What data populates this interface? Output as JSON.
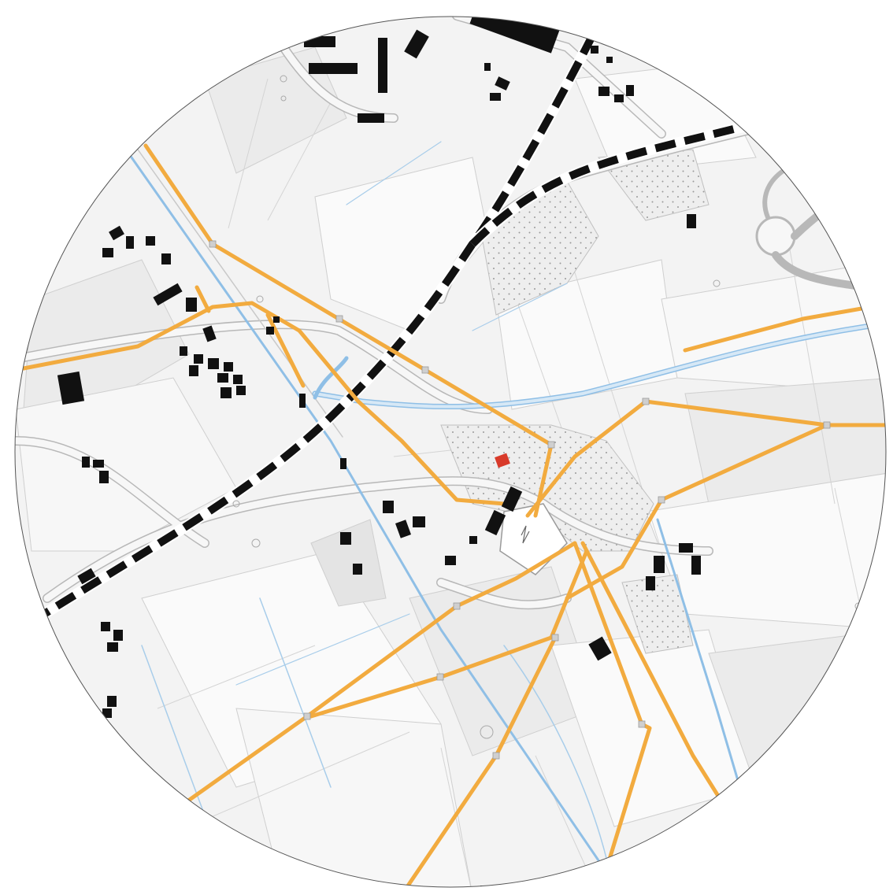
{
  "map": {
    "style": "circular cadastral site plan",
    "colors": {
      "background": "#ffffff",
      "land": "#f3f3f3",
      "parcel_light": "#fafafa",
      "parcel_grey": "#ebebeb",
      "parcel_stroke": "#cfcfcf",
      "road_casing": "#b8b8b8",
      "road_fill": "#f7f7f7",
      "building": "#111111",
      "highlight_building": "#d83a2a",
      "water": "#8fbfe6",
      "water_fill": "#d6e8f6",
      "railway": "#111111",
      "power_line": "#f2ab3f",
      "power_node": "#c8c8c8",
      "dot_pattern": "#9a9a9a",
      "circle_border": "#555555"
    },
    "feature_types": [
      "buildings",
      "highlighted-building",
      "railway",
      "roads",
      "waterways",
      "power-lines",
      "substation",
      "dotted-woodland",
      "parcels"
    ]
  }
}
